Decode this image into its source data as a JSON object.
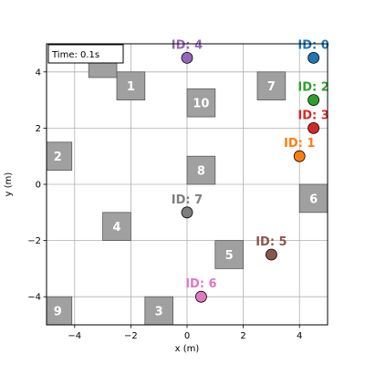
{
  "chart_data": {
    "type": "scatter",
    "xlabel": "x (m)",
    "ylabel": "y (m)",
    "xlim": [
      -5,
      5
    ],
    "ylim": [
      -5,
      5
    ],
    "grid": true,
    "x_ticks": [
      -4,
      -2,
      0,
      2,
      4
    ],
    "y_ticks": [
      -4,
      -2,
      0,
      2,
      4
    ],
    "x_tick_labels": [
      "−4",
      "−2",
      "0",
      "2",
      "4"
    ],
    "y_tick_labels": [
      "−4",
      "−2",
      "0",
      "2",
      "4"
    ],
    "time_text": "Time: 0.1s",
    "obstacles": [
      {
        "label": "1",
        "x": -2.0,
        "y": 3.5
      },
      {
        "label": "2",
        "x": -4.6,
        "y": 1.0
      },
      {
        "label": "3",
        "x": -1.0,
        "y": -4.5
      },
      {
        "label": "4",
        "x": -2.5,
        "y": -1.5
      },
      {
        "label": "5",
        "x": 1.5,
        "y": -2.5
      },
      {
        "label": "6",
        "x": 4.5,
        "y": -0.5
      },
      {
        "label": "7",
        "x": 3.0,
        "y": 3.5
      },
      {
        "label": "8",
        "x": 0.5,
        "y": 0.5
      },
      {
        "label": "9",
        "x": -4.6,
        "y": -4.5
      },
      {
        "label": "10",
        "x": 0.5,
        "y": 2.9
      },
      {
        "label": "",
        "x": -3.0,
        "y": 4.3
      }
    ],
    "agents": [
      {
        "label": "ID: 0",
        "x": 4.5,
        "y": 4.5,
        "color": "#1f77b4"
      },
      {
        "label": "ID: 1",
        "x": 4.0,
        "y": 1.0,
        "color": "#ff7f0e"
      },
      {
        "label": "ID: 2",
        "x": 4.5,
        "y": 3.0,
        "color": "#2ca02c"
      },
      {
        "label": "ID: 3",
        "x": 4.5,
        "y": 2.0,
        "color": "#d62728"
      },
      {
        "label": "ID: 4",
        "x": 0.0,
        "y": 4.5,
        "color": "#9467bd"
      },
      {
        "label": "ID: 5",
        "x": 3.0,
        "y": -2.5,
        "color": "#8c564b"
      },
      {
        "label": "ID: 6",
        "x": 0.5,
        "y": -4.0,
        "color": "#e377c2"
      },
      {
        "label": "ID: 7",
        "x": 0.0,
        "y": -1.0,
        "color": "#7f7f7f"
      }
    ],
    "obstacle_color": "#a0a0a0",
    "grid_color": "#b0b0b0"
  }
}
